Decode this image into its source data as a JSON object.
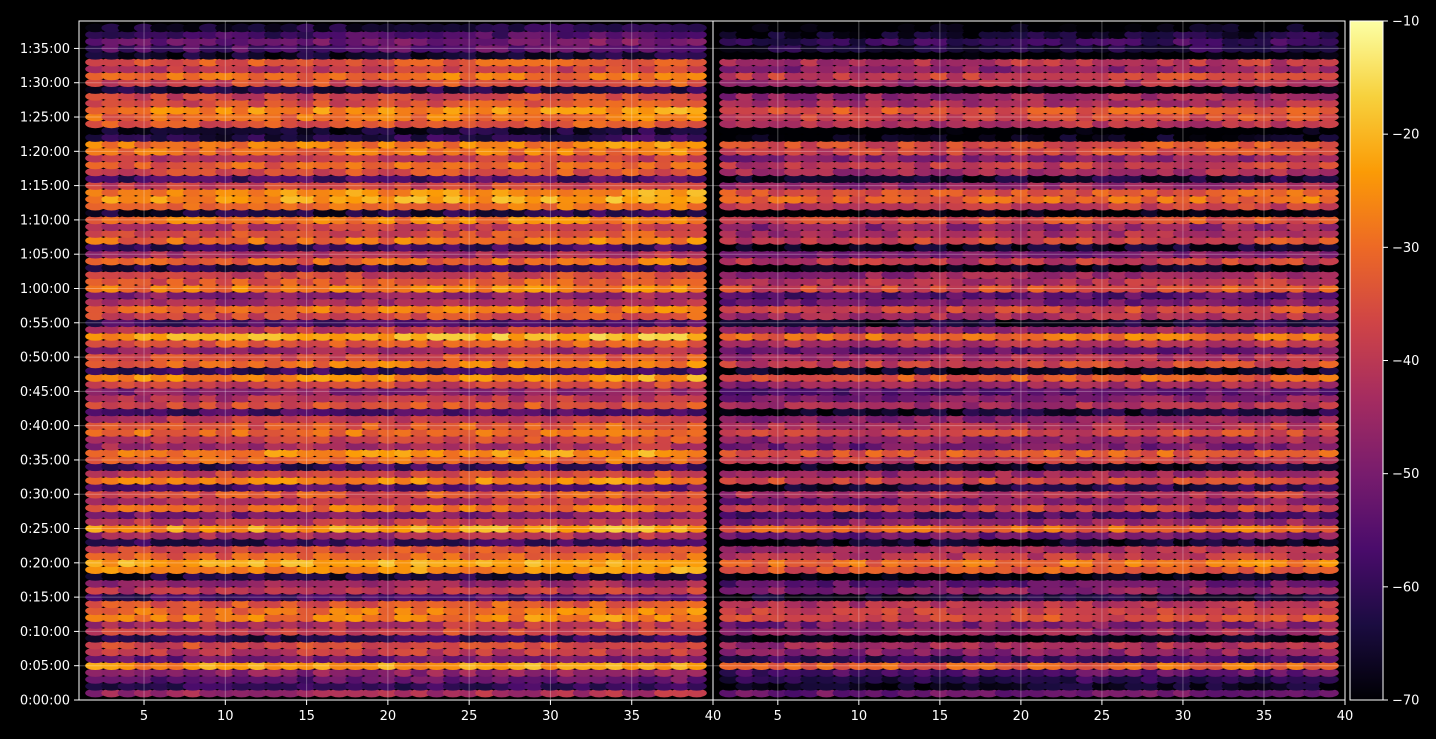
{
  "chart_data": {
    "type": "heatmap",
    "title": "",
    "xlabel": "",
    "ylabel": "",
    "colormap": "inferno",
    "colormap_stops": [
      "#000004",
      "#1b0c41",
      "#4a0c6b",
      "#781c6d",
      "#a52c60",
      "#cf4446",
      "#ed6925",
      "#fb9b06",
      "#f7d13d",
      "#fcffa4"
    ],
    "background": "#000000",
    "grid": true,
    "gridline_color": "#ffffff",
    "colorbar": {
      "position": "right",
      "range": [
        -70,
        -10
      ],
      "ticks": [
        -70,
        -60,
        -50,
        -40,
        -30,
        -20,
        -10
      ],
      "tick_labels": [
        "−70",
        "−60",
        "−50",
        "−40",
        "−30",
        "−20",
        "−10"
      ]
    },
    "y_axis": {
      "range_seconds": [
        0,
        5940
      ],
      "ticks_seconds": [
        0,
        300,
        600,
        900,
        1200,
        1500,
        1800,
        2100,
        2400,
        2700,
        3000,
        3300,
        3600,
        3900,
        4200,
        4500,
        4800,
        5100,
        5400,
        5700
      ],
      "tick_labels": [
        "0:00:00",
        "0:05:00",
        "0:10:00",
        "0:15:00",
        "0:20:00",
        "0:25:00",
        "0:30:00",
        "0:35:00",
        "0:40:00",
        "0:45:00",
        "0:50:00",
        "0:55:00",
        "1:00:00",
        "1:05:00",
        "1:10:00",
        "1:15:00",
        "1:20:00",
        "1:25:00",
        "1:30:00",
        "1:35:00"
      ]
    },
    "panels": [
      {
        "x_range": [
          1,
          40
        ],
        "x_ticks": [
          5,
          10,
          15,
          20,
          25,
          30,
          35,
          40
        ],
        "x_tick_labels": [
          "5",
          "10",
          "15",
          "20",
          "25",
          "30",
          "35",
          "40"
        ],
        "level_offset": 0
      },
      {
        "x_range": [
          1,
          40
        ],
        "x_ticks": [
          5,
          10,
          15,
          20,
          25,
          30,
          35,
          40
        ],
        "x_tick_labels": [
          "5",
          "10",
          "15",
          "20",
          "25",
          "30",
          "35",
          "40"
        ],
        "level_offset": -8
      }
    ],
    "x_columns": [
      2,
      3,
      4,
      5,
      6,
      7,
      8,
      9,
      10,
      11,
      12,
      13,
      14,
      15,
      16,
      17,
      18,
      19,
      20,
      21,
      22,
      23,
      24,
      25,
      26,
      27,
      28,
      29,
      30,
      31,
      32,
      33,
      34,
      35,
      36,
      37,
      38,
      39
    ],
    "y_time_rows_seconds": [
      60,
      120,
      180,
      240,
      300,
      360,
      420,
      480,
      540,
      600,
      660,
      720,
      780,
      840,
      900,
      960,
      1020,
      1080,
      1140,
      1200,
      1260,
      1320,
      1380,
      1440,
      1500,
      1560,
      1620,
      1680,
      1740,
      1800,
      1860,
      1920,
      1980,
      2040,
      2100,
      2160,
      2220,
      2280,
      2340,
      2400,
      2460,
      2520,
      2580,
      2640,
      2700,
      2760,
      2820,
      2880,
      2940,
      3000,
      3060,
      3120,
      3180,
      3240,
      3300,
      3360,
      3420,
      3480,
      3540,
      3600,
      3660,
      3720,
      3780,
      3840,
      3900,
      3960,
      4020,
      4080,
      4140,
      4200,
      4260,
      4320,
      4380,
      4440,
      4500,
      4560,
      4620,
      4680,
      4740,
      4800,
      4860,
      4920,
      4980,
      5040,
      5100,
      5160,
      5220,
      5280,
      5340,
      5400,
      5460,
      5520,
      5580,
      5640,
      5700,
      5760,
      5820,
      5880
    ],
    "row_levels_db": [
      -44,
      -60,
      -54,
      -48,
      -24,
      -52,
      -40,
      -36,
      -62,
      -38,
      -42,
      -28,
      -30,
      -34,
      -58,
      -40,
      -46,
      -64,
      -26,
      -22,
      -32,
      -36,
      -60,
      -44,
      -24,
      -40,
      -50,
      -30,
      -42,
      -34,
      -56,
      -28,
      -38,
      -60,
      -32,
      -26,
      -44,
      -38,
      -30,
      -34,
      -40,
      -58,
      -36,
      -42,
      -48,
      -38,
      -26,
      -60,
      -30,
      -36,
      -46,
      -34,
      -22,
      -40,
      -58,
      -36,
      -30,
      -44,
      -48,
      -28,
      -34,
      -38,
      -62,
      -32,
      -44,
      -60,
      -30,
      -36,
      -40,
      -28,
      -64,
      -32,
      -24,
      -26,
      -38,
      -58,
      -36,
      -32,
      -40,
      -30,
      -28,
      -62,
      -66,
      -34,
      -30,
      -26,
      -36,
      -38,
      -64,
      -36,
      -30,
      -40,
      -34,
      -66,
      -56,
      -52,
      -58,
      -64
    ]
  }
}
